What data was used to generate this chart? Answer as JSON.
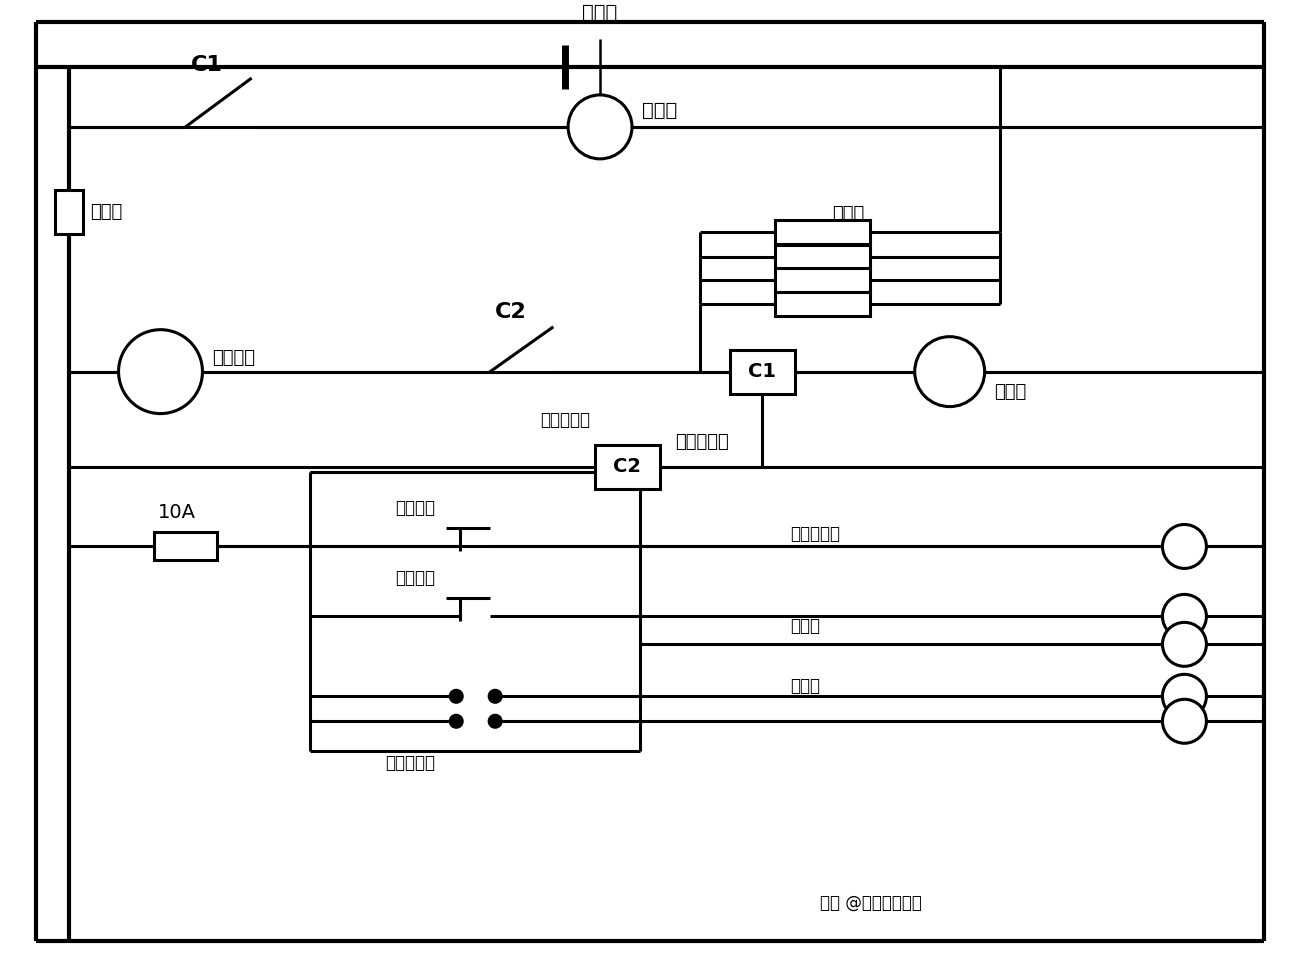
{
  "bg": "#ffffff",
  "lc": "#000000",
  "labels": {
    "battery": "蓄电池",
    "starter": "启动机",
    "fuse_main": "易熔线",
    "preheat": "预热塞",
    "start_sw": "启动开关",
    "C1_sw": "C1",
    "C2_sw": "C2",
    "C1_box": "C1",
    "C2_box": "C2",
    "start_relay": "启动继电器",
    "mid_relay": "中间继电器",
    "hour": "小时表",
    "fuse10A": "10A",
    "neutral_sw": "零档开关",
    "reverse_sw": "倒车开关",
    "turn_sw": "转向灯开关",
    "neutral_lt": "零档指示灯",
    "reverse_lt": "倒车灯",
    "turn_lt": "转向灯",
    "watermark": "知乎 @起重运输机械"
  }
}
